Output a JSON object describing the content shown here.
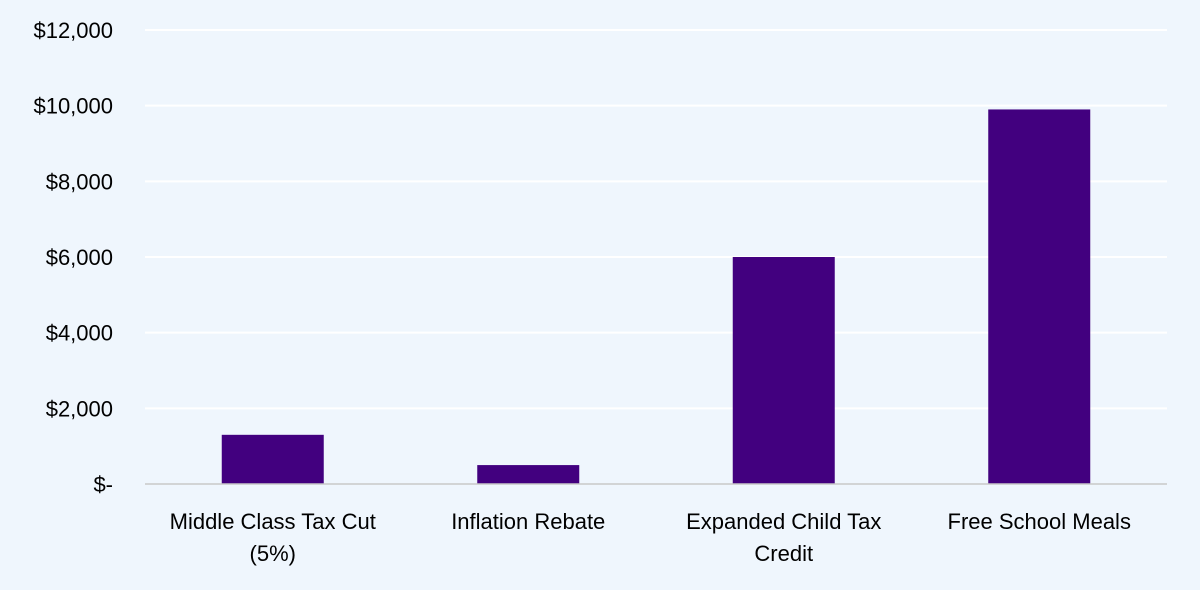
{
  "chart_data": {
    "type": "bar",
    "categories": [
      [
        "Middle Class Tax Cut",
        "(5%)"
      ],
      [
        "Inflation Rebate"
      ],
      [
        "Expanded Child Tax",
        "Credit"
      ],
      [
        "Free School Meals"
      ]
    ],
    "values": [
      1300,
      500,
      6000,
      9900
    ],
    "ylim": [
      0,
      12000
    ],
    "yticks": [
      {
        "value": 0,
        "label": "$-"
      },
      {
        "value": 2000,
        "label": "$2,000"
      },
      {
        "value": 4000,
        "label": "$4,000"
      },
      {
        "value": 6000,
        "label": "$6,000"
      },
      {
        "value": 8000,
        "label": "$8,000"
      },
      {
        "value": 10000,
        "label": "$10,000"
      },
      {
        "value": 12000,
        "label": "$12,000"
      }
    ],
    "grid": true,
    "legend": "none",
    "colors": {
      "bar": "#42007f",
      "gridline": "#ffffff",
      "axis": "#c8c8c8",
      "background": "#eff6fd"
    }
  }
}
